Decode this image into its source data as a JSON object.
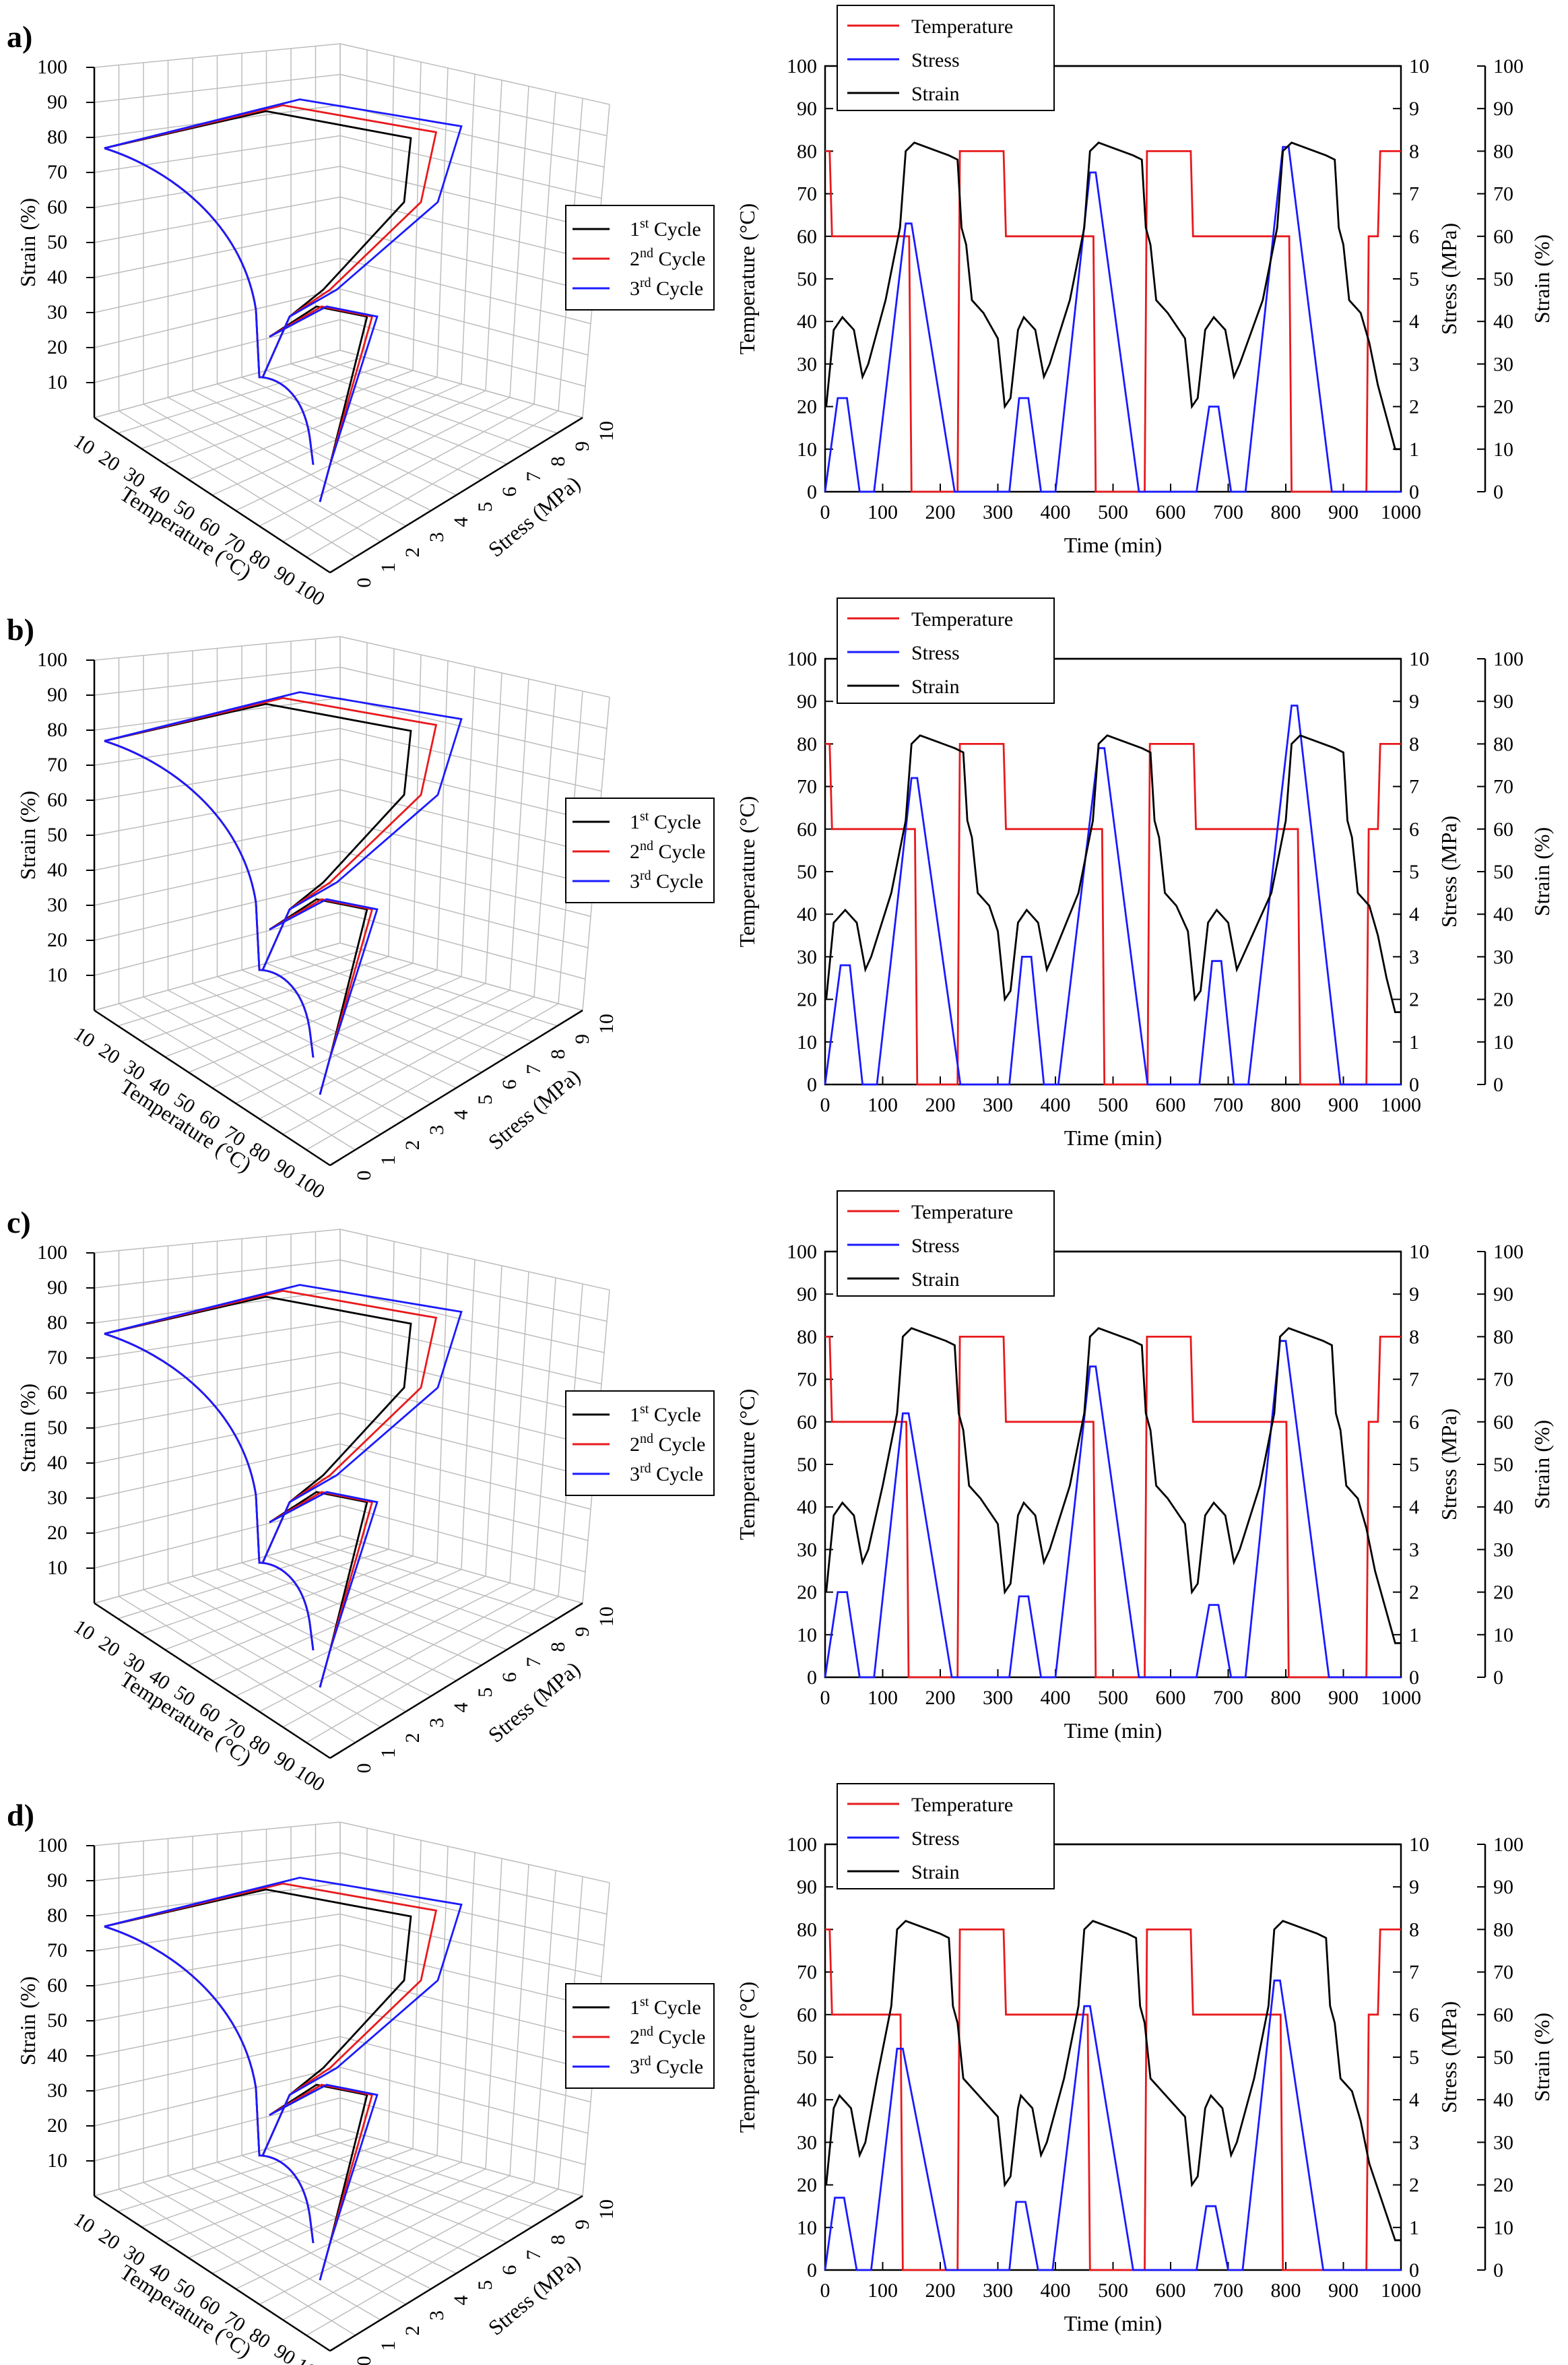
{
  "figure": "Temperature-stress-strain thermomechanical cycling results",
  "colors": {
    "cycle1": "#000000",
    "cycle2": "#e8191c",
    "cycle3": "#1a1aff",
    "temperature": "#e8191c",
    "stress": "#1a1aff",
    "strain": "#000000",
    "grid": "#bdbdbd"
  },
  "common": {
    "plot3d": {
      "strain_label": "Strain (%)",
      "temperature_label": "Temperature (°C)",
      "stress_label": "Stress (MPa)",
      "strain_ticks": [
        "10",
        "20",
        "30",
        "40",
        "50",
        "60",
        "70",
        "80",
        "90",
        "100"
      ],
      "temperature_ticks": [
        "10",
        "20",
        "30",
        "40",
        "50",
        "60",
        "70",
        "80",
        "90",
        "100"
      ],
      "stress_ticks": [
        "0",
        "1",
        "2",
        "3",
        "4",
        "5",
        "6",
        "7",
        "8",
        "9",
        "10"
      ],
      "legend": [
        {
          "base": "1",
          "sup": "st",
          "text": " Cycle",
          "color": "#000000"
        },
        {
          "base": "2",
          "sup": "nd",
          "text": " Cycle",
          "color": "#e8191c"
        },
        {
          "base": "3",
          "sup": "rd",
          "text": " Cycle",
          "color": "#1a1aff"
        }
      ]
    },
    "plot2d": {
      "xlabel": "Time (min)",
      "ylabel_left": "Temperature (°C)",
      "ylabel_mid": "Stress (MPa)",
      "ylabel_right": "Strain (%)",
      "x_ticks": [
        "0",
        "100",
        "200",
        "300",
        "400",
        "500",
        "600",
        "700",
        "800",
        "900",
        "1000"
      ],
      "left_ticks": [
        "0",
        "10",
        "20",
        "30",
        "40",
        "50",
        "60",
        "70",
        "80",
        "90",
        "100"
      ],
      "mid_ticks": [
        "0",
        "1",
        "2",
        "3",
        "4",
        "5",
        "6",
        "7",
        "8",
        "9",
        "10"
      ],
      "right_ticks": [
        "0",
        "10",
        "20",
        "30",
        "40",
        "50",
        "60",
        "70",
        "80",
        "90",
        "100"
      ],
      "legend": [
        "Temperature",
        "Stress",
        "Strain"
      ]
    }
  },
  "chart_data": [
    {
      "panel": "a)",
      "type": "line",
      "title": "",
      "xlabel": "Time (min)",
      "xlim": [
        0,
        1000
      ],
      "ylim_temperature": [
        0,
        100
      ],
      "ylim_stress": [
        0,
        10
      ],
      "ylim_strain": [
        0,
        100
      ],
      "stress_peaks": [
        {
          "t": 30,
          "v": 2.2
        },
        {
          "t": 145,
          "v": 6.3
        },
        {
          "t": 345,
          "v": 2.2
        },
        {
          "t": 465,
          "v": 7.5
        },
        {
          "t": 675,
          "v": 2.0
        },
        {
          "t": 800,
          "v": 8.1
        }
      ],
      "strain_end": 10,
      "cycle_start": [
        0,
        320,
        645
      ]
    },
    {
      "panel": "b)",
      "type": "line",
      "title": "",
      "xlabel": "Time (min)",
      "xlim": [
        0,
        1000
      ],
      "ylim_temperature": [
        0,
        100
      ],
      "ylim_stress": [
        0,
        10
      ],
      "ylim_strain": [
        0,
        100
      ],
      "stress_peaks": [
        {
          "t": 35,
          "v": 2.8
        },
        {
          "t": 155,
          "v": 7.2
        },
        {
          "t": 350,
          "v": 3.0
        },
        {
          "t": 480,
          "v": 7.9
        },
        {
          "t": 680,
          "v": 2.9
        },
        {
          "t": 815,
          "v": 8.9
        }
      ],
      "strain_end": 17,
      "cycle_start": [
        0,
        320,
        650
      ]
    },
    {
      "panel": "c)",
      "type": "line",
      "title": "",
      "xlabel": "Time (min)",
      "xlim": [
        0,
        1000
      ],
      "ylim_temperature": [
        0,
        100
      ],
      "ylim_stress": [
        0,
        10
      ],
      "ylim_strain": [
        0,
        100
      ],
      "stress_peaks": [
        {
          "t": 30,
          "v": 2.0
        },
        {
          "t": 140,
          "v": 6.2
        },
        {
          "t": 345,
          "v": 1.9
        },
        {
          "t": 465,
          "v": 7.3
        },
        {
          "t": 675,
          "v": 1.7
        },
        {
          "t": 795,
          "v": 7.9
        }
      ],
      "strain_end": 8,
      "cycle_start": [
        0,
        320,
        645
      ]
    },
    {
      "panel": "d)",
      "type": "line",
      "title": "",
      "xlabel": "Time (min)",
      "xlim": [
        0,
        1000
      ],
      "ylim_temperature": [
        0,
        100
      ],
      "ylim_stress": [
        0,
        10
      ],
      "ylim_strain": [
        0,
        100
      ],
      "stress_peaks": [
        {
          "t": 25,
          "v": 1.7
        },
        {
          "t": 130,
          "v": 5.2
        },
        {
          "t": 340,
          "v": 1.6
        },
        {
          "t": 455,
          "v": 6.2
        },
        {
          "t": 670,
          "v": 1.5
        },
        {
          "t": 785,
          "v": 6.8
        }
      ],
      "strain_end": 7,
      "cycle_start": [
        0,
        320,
        645
      ]
    }
  ]
}
